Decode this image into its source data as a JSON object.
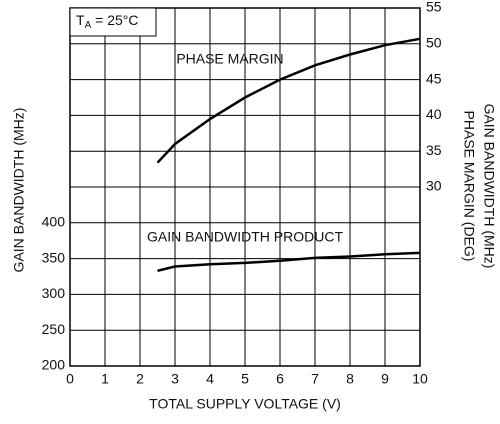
{
  "chart_data": {
    "type": "line",
    "x_label": "TOTAL SUPPLY VOLTAGE (V)",
    "y_label": "GAIN BANDWIDTH (MHz)",
    "y2_labels": [
      "PHASE MARGIN (DEG)",
      "GAIN BANDWIDTH (MHz)"
    ],
    "condition": {
      "main": "T",
      "sub": "A",
      "rest": " = 25°C"
    },
    "xlim": [
      0,
      10
    ],
    "xticks": [
      0,
      1,
      2,
      3,
      4,
      5,
      6,
      7,
      8,
      9,
      10
    ],
    "ylim": [
      200,
      700
    ],
    "yticks": [
      200,
      250,
      300,
      350,
      400
    ],
    "y2lim": [
      5,
      55
    ],
    "y2ticks": [
      30,
      35,
      40,
      45,
      50,
      55
    ],
    "grid": true,
    "series": [
      {
        "name": "PHASE MARGIN",
        "color": "#000000",
        "axis": "y2",
        "x": [
          2.5,
          3,
          4,
          5,
          6,
          7,
          8,
          9,
          10
        ],
        "values": [
          33.4,
          36,
          39.5,
          42.5,
          45,
          47,
          48.5,
          49.8,
          50.7
        ]
      },
      {
        "name": "GAIN BANDWIDTH PRODUCT",
        "color": "#000000",
        "axis": "y",
        "x": [
          2.5,
          3,
          4,
          5,
          6,
          7,
          8,
          9,
          10
        ],
        "values": [
          333,
          339,
          342,
          344,
          347,
          351,
          353,
          356,
          358
        ]
      }
    ]
  }
}
